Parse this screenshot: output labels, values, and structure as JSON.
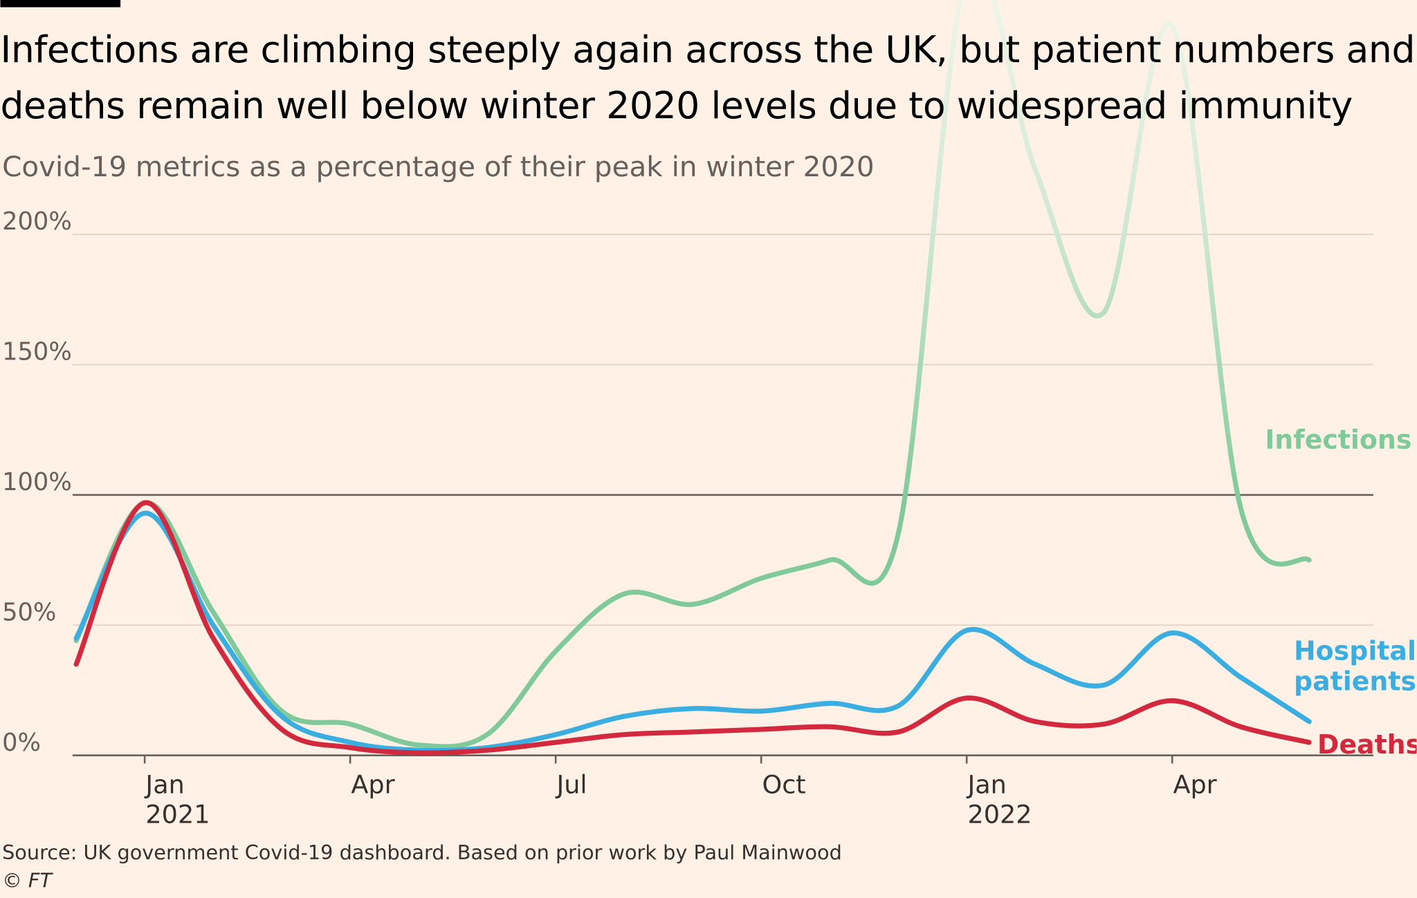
{
  "chart_data": {
    "type": "line",
    "title": "Infections are climbing steeply again across the UK, but patient numbers and deaths remain well below winter 2020 levels due to widespread immunity",
    "subtitle": "Covid-19 metrics as a percentage of their peak in winter 2020",
    "source": "Source: UK government Covid-19 dashboard. Based on prior work by Paul Mainwood",
    "credit": "© FT",
    "x": [
      "2020-12",
      "2021-01",
      "2021-02",
      "2021-03",
      "2021-04",
      "2021-05",
      "2021-06",
      "2021-07",
      "2021-08",
      "2021-09",
      "2021-10",
      "2021-11",
      "2021-12",
      "2022-01",
      "2022-02",
      "2022-03",
      "2022-04",
      "2022-05",
      "2022-06"
    ],
    "xlim": [
      "2020-12",
      "2022-06"
    ],
    "xticks": [
      {
        "value": "2021-01",
        "label": "Jan",
        "year": "2021"
      },
      {
        "value": "2021-04",
        "label": "Apr"
      },
      {
        "value": "2021-07",
        "label": "Jul"
      },
      {
        "value": "2021-10",
        "label": "Oct"
      },
      {
        "value": "2022-01",
        "label": "Jan",
        "year": "2022"
      },
      {
        "value": "2022-04",
        "label": "Apr"
      }
    ],
    "ylim": [
      0,
      290
    ],
    "yticks": [
      {
        "value": 0,
        "label": "0%"
      },
      {
        "value": 50,
        "label": "50%"
      },
      {
        "value": 100,
        "label": "100%"
      },
      {
        "value": 150,
        "label": "150%"
      },
      {
        "value": 200,
        "label": "200%"
      }
    ],
    "grid": true,
    "series": [
      {
        "name": "Infections",
        "color": "#80c99a",
        "values": [
          44,
          97,
          55,
          17,
          12,
          4,
          8,
          40,
          62,
          58,
          68,
          75,
          85,
          300,
          225,
          170,
          280,
          95,
          75
        ]
      },
      {
        "name": "Hospital patients",
        "color": "#3aaee0",
        "values": [
          45,
          93,
          50,
          15,
          5,
          2,
          3,
          8,
          15,
          18,
          17,
          20,
          19,
          48,
          35,
          27,
          47,
          30,
          13
        ]
      },
      {
        "name": "Deaths",
        "color": "#d2293e",
        "values": [
          35,
          97,
          45,
          10,
          3,
          1,
          2,
          5,
          8,
          9,
          10,
          11,
          9,
          22,
          13,
          12,
          21,
          11,
          5
        ]
      }
    ]
  }
}
